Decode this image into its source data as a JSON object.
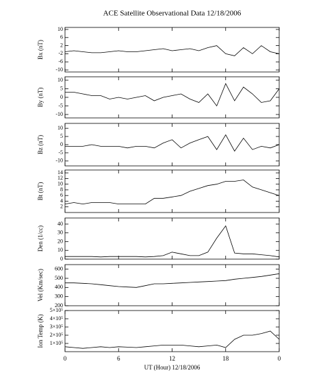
{
  "chart_data": [
    {
      "type": "line",
      "title": "ACE Satellite Observational Data   12/18/2006",
      "ylabel": "Bx (nT)",
      "ylim": [
        -11,
        11
      ],
      "yticks": [
        -10,
        -6,
        -2,
        2,
        6,
        10
      ],
      "values": [
        -1,
        -0.5,
        -1,
        -1.5,
        -1.5,
        -1,
        -0.5,
        -1,
        -1,
        -0.5,
        0,
        0.5,
        -0.5,
        0,
        0.5,
        -0.5,
        1,
        2,
        -2,
        -3,
        1,
        -2,
        2,
        -1,
        -2
      ],
      "color": "#000000"
    },
    {
      "type": "line",
      "ylabel": "By (nT)",
      "ylim": [
        -12,
        12
      ],
      "yticks": [
        -10,
        -5,
        0,
        5,
        10
      ],
      "values": [
        3,
        3,
        2,
        1,
        1,
        -1,
        0,
        -1,
        0,
        1,
        -2,
        0,
        1,
        2,
        -1,
        -3,
        2,
        -5,
        8,
        -2,
        6,
        2,
        -3,
        -2,
        5
      ],
      "color": "#000000"
    },
    {
      "type": "line",
      "ylabel": "Bz (nT)",
      "ylim": [
        -13,
        13
      ],
      "yticks": [
        -10,
        -5,
        0,
        5,
        10
      ],
      "values": [
        -1,
        -1,
        -1,
        0,
        -1,
        -1,
        -1,
        -2,
        -1,
        -1,
        -2,
        1,
        3,
        -2,
        1,
        3,
        5,
        -3,
        6,
        -4,
        4,
        -3,
        -1,
        -2,
        0
      ],
      "color": "#000000"
    },
    {
      "type": "line",
      "ylabel": "Bt (nT)",
      "ylim": [
        0,
        15
      ],
      "yticks": [
        2,
        4,
        6,
        8,
        10,
        12,
        14
      ],
      "values": [
        3,
        3.5,
        3,
        3.5,
        3.5,
        3.5,
        3,
        3,
        3,
        3,
        5,
        5,
        5.5,
        6,
        7.5,
        8.5,
        9.5,
        10,
        11,
        11,
        11.5,
        9,
        8,
        7,
        6
      ],
      "color": "#000000"
    },
    {
      "type": "line",
      "ylabel": "Den (1/cc)",
      "ylim": [
        0,
        47
      ],
      "yticks": [
        0,
        10,
        20,
        30,
        40
      ],
      "values": [
        3,
        3,
        3,
        3,
        2.5,
        3,
        3,
        3,
        3,
        2.5,
        3,
        4,
        8,
        6,
        4,
        4,
        8,
        24,
        38,
        7,
        6,
        6,
        5,
        4,
        2.5
      ],
      "color": "#000000"
    },
    {
      "type": "line",
      "ylabel": "Vel (Km/sec)",
      "ylim": [
        200,
        650
      ],
      "yticks": [
        200,
        300,
        400,
        500,
        600
      ],
      "values": [
        450,
        450,
        445,
        440,
        430,
        420,
        410,
        405,
        400,
        420,
        440,
        440,
        445,
        450,
        455,
        460,
        465,
        470,
        475,
        490,
        500,
        510,
        520,
        535,
        550
      ],
      "color": "#000000"
    },
    {
      "type": "line",
      "ylabel": "Ion Temp (K)",
      "ylim": [
        0,
        500000
      ],
      "yticks": [
        {
          "value": 100000,
          "label": "1×10⁵"
        },
        {
          "value": 200000,
          "label": "2×10⁵"
        },
        {
          "value": 300000,
          "label": "3×10⁵"
        },
        {
          "value": 400000,
          "label": "4×10⁵"
        },
        {
          "value": 500000,
          "label": "5×10⁵"
        }
      ],
      "values": [
        60000,
        50000,
        40000,
        50000,
        60000,
        50000,
        60000,
        55000,
        50000,
        60000,
        70000,
        80000,
        80000,
        80000,
        70000,
        60000,
        70000,
        80000,
        50000,
        150000,
        200000,
        200000,
        220000,
        250000,
        150000
      ],
      "color": "#000000",
      "x": [
        0,
        1,
        2,
        3,
        4,
        5,
        6,
        7,
        8,
        9,
        10,
        11,
        12,
        13,
        14,
        15,
        16,
        17,
        18,
        19,
        20,
        21,
        22,
        23,
        24
      ],
      "xlim": [
        0,
        24
      ],
      "xticks": [
        0,
        6,
        12,
        18,
        {
          "value": 24,
          "label": "0"
        }
      ],
      "xlabel": "UT (Hour)  12/18/2006"
    }
  ]
}
